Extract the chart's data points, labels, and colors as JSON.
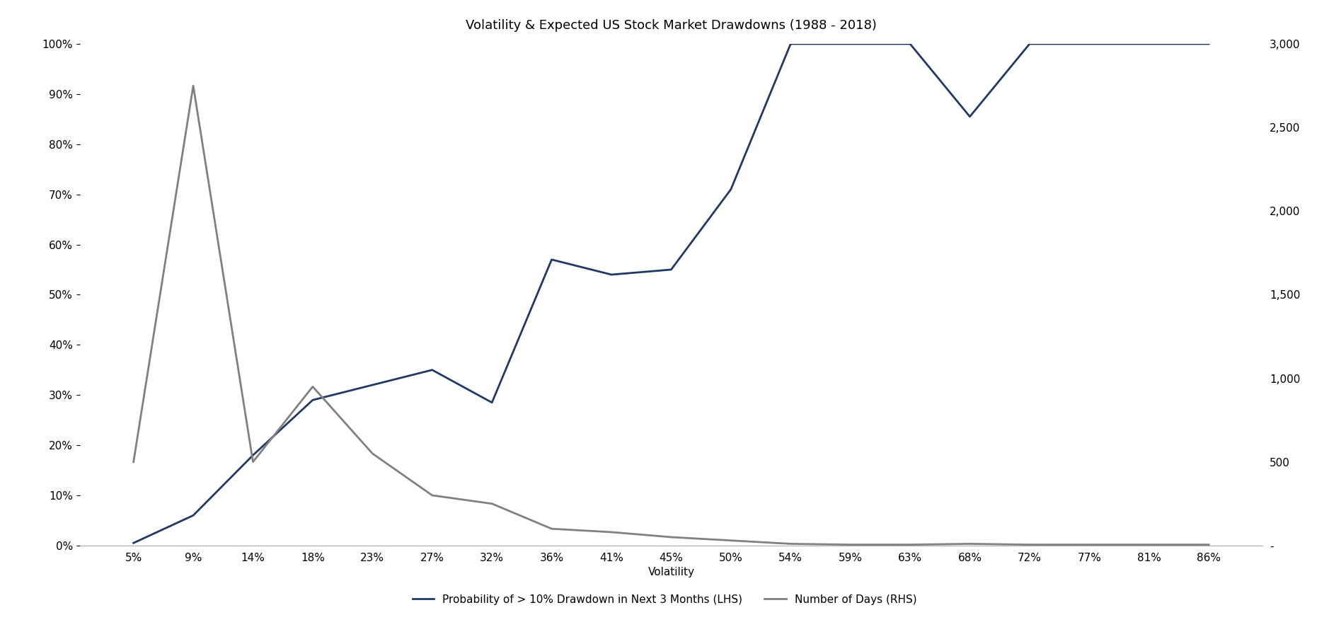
{
  "title": "Volatility & Expected US Stock Market Drawdowns (1988 - 2018)",
  "xlabel": "Volatility",
  "x_labels": [
    "5%",
    "9%",
    "14%",
    "18%",
    "23%",
    "27%",
    "32%",
    "36%",
    "41%",
    "45%",
    "50%",
    "54%",
    "59%",
    "63%",
    "68%",
    "72%",
    "77%",
    "81%",
    "86%"
  ],
  "lhs_values": [
    0.005,
    0.06,
    0.18,
    0.29,
    0.32,
    0.35,
    0.285,
    0.57,
    0.54,
    0.55,
    0.71,
    1.0,
    1.0,
    1.0,
    0.855,
    1.0,
    1.0,
    1.0,
    1.0
  ],
  "rhs_values": [
    500,
    2750,
    500,
    950,
    550,
    300,
    250,
    100,
    80,
    50,
    30,
    10,
    5,
    5,
    10,
    5,
    5,
    5,
    5
  ],
  "lhs_color": "#1F3864",
  "rhs_color": "#808080",
  "lhs_label": "Probability of > 10% Drawdown in Next 3 Months (LHS)",
  "rhs_label": "Number of Days (RHS)",
  "lhs_ylim": [
    0,
    1.0
  ],
  "rhs_ylim": [
    0,
    3000
  ],
  "lhs_yticks": [
    0.0,
    0.1,
    0.2,
    0.3,
    0.4,
    0.5,
    0.6,
    0.7,
    0.8,
    0.9,
    1.0
  ],
  "lhs_ytick_labels": [
    "0%",
    "10%",
    "20%",
    "30%",
    "40%",
    "50%",
    "60%",
    "70%",
    "80%",
    "90%",
    "100%"
  ],
  "rhs_yticks": [
    0,
    500,
    1000,
    1500,
    2000,
    2500,
    3000
  ],
  "rhs_ytick_labels": [
    "-",
    "500",
    "1,000",
    "1,500",
    "2,000",
    "2,500",
    "3,000"
  ],
  "title_fontsize": 13,
  "label_fontsize": 11,
  "tick_fontsize": 11,
  "legend_fontsize": 11,
  "linewidth": 2.0,
  "background_color": "#ffffff"
}
